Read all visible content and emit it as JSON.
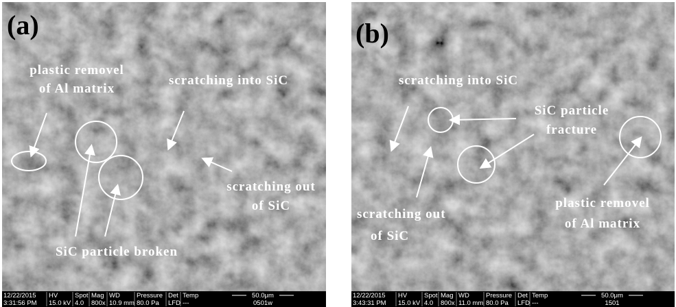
{
  "panels": [
    {
      "label": "(a)",
      "annotations": [
        [
          "plastic removel",
          "of Al matrix"
        ],
        [
          "scratching into SiC"
        ],
        [
          "scratching out",
          "of SiC"
        ],
        [
          "SiC particle broken"
        ]
      ],
      "info_bar": {
        "cells": [
          [
            "12/22/2015",
            "3:31:56 PM"
          ],
          [
            "HV",
            "15.0 kV"
          ],
          [
            "Spot",
            "4.0"
          ],
          [
            "Mag",
            "800x"
          ],
          [
            "WD",
            "10.9 mm"
          ],
          [
            "Pressure",
            "80.0 Pa"
          ],
          [
            "Det",
            "LFD"
          ],
          [
            "Temp",
            "---"
          ],
          [
            "50.0μm",
            "0501w"
          ]
        ]
      }
    },
    {
      "label": "(b)",
      "annotations": [
        [
          "scratching into SiC"
        ],
        [
          "SiC particle",
          "fracture"
        ],
        [
          "scratching out",
          "of SiC"
        ],
        [
          "plastic removel",
          "of Al matrix"
        ]
      ],
      "info_bar": {
        "cells": [
          [
            "12/22/2015",
            "3:43:31 PM"
          ],
          [
            "HV",
            "15.0 kV"
          ],
          [
            "Spot",
            "4.0"
          ],
          [
            "Mag",
            "800x"
          ],
          [
            "WD",
            "11.0 mm"
          ],
          [
            "Pressure",
            "80.0 Pa"
          ],
          [
            "Det",
            "LFD"
          ],
          [
            "Temp",
            "---"
          ],
          [
            "50.0μm",
            "1501"
          ]
        ]
      }
    }
  ]
}
